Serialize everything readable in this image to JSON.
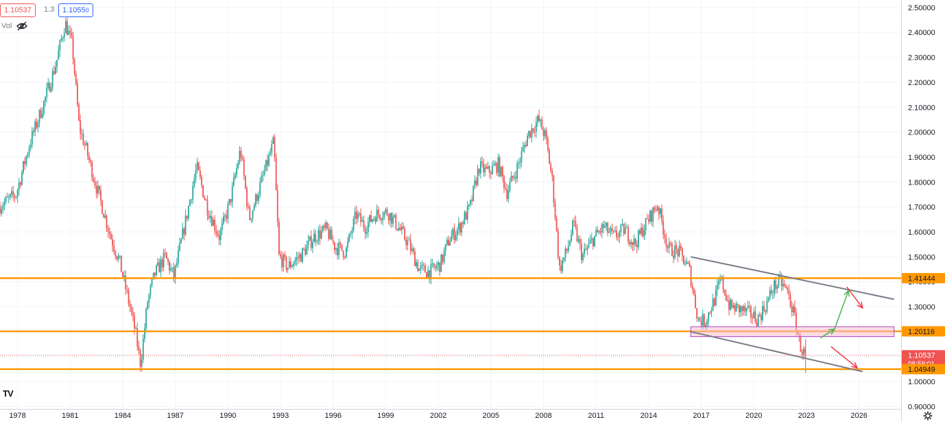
{
  "header": {
    "bid_price": "1.10537",
    "spread": "1.3",
    "ask_price_main": "1.1055",
    "ask_price_small": "0",
    "vol_label": "Vol",
    "vol_icon": "eye-crossed-icon"
  },
  "footer": {
    "logo_text": "TV",
    "settings_icon": "gear-icon"
  },
  "colors": {
    "up": "#26a69a",
    "down": "#ef5350",
    "level": "#ff9800",
    "channel": "#787b86",
    "zone_fill": "#f8bbd0",
    "zone_border": "#ab47bc",
    "arrow_up": "#4caf50",
    "arrow_down": "#f23645",
    "grid": "#f0f3fa"
  },
  "chart_data": {
    "type": "candlestick",
    "y_ticks": [
      "2.50000",
      "2.40000",
      "2.30000",
      "2.20000",
      "2.10000",
      "2.00000",
      "1.90000",
      "1.80000",
      "1.70000",
      "1.60000",
      "1.50000",
      "1.40000",
      "1.30000",
      "1.20000",
      "1.10000",
      "1.00000",
      "0.90000"
    ],
    "x_ticks": [
      "1978",
      "1981",
      "1984",
      "1987",
      "1990",
      "1993",
      "1996",
      "1999",
      "2002",
      "2005",
      "2008",
      "2011",
      "2014",
      "2017",
      "2020",
      "2023",
      "2026"
    ],
    "ylim": [
      0.89,
      2.53
    ],
    "xlim": [
      1977.0,
      2028.4
    ],
    "price_labels": [
      {
        "value": 1.41444,
        "text": "1.41444",
        "kind": "level"
      },
      {
        "value": 1.20116,
        "text": "1.20116",
        "kind": "level"
      },
      {
        "value": 1.10537,
        "text": "1.10537",
        "countdown": "08:58:01",
        "kind": "current"
      },
      {
        "value": 1.04949,
        "text": "1.04949",
        "kind": "level"
      }
    ],
    "horizontal_levels": [
      1.41444,
      1.20116,
      1.04949
    ],
    "channel_upper": [
      [
        2016.4,
        1.5
      ],
      [
        2028.0,
        1.33
      ]
    ],
    "channel_lower": [
      [
        2016.4,
        1.2
      ],
      [
        2026.2,
        1.04
      ]
    ],
    "zone": {
      "x": [
        2016.4,
        2028.0
      ],
      "y": [
        1.18,
        1.22
      ]
    },
    "arrows": [
      {
        "from": [
          2023.8,
          1.175
        ],
        "to": [
          2024.6,
          1.21
        ],
        "dir": "up"
      },
      {
        "from": [
          2024.6,
          1.21
        ],
        "to": [
          2025.4,
          1.365
        ],
        "dir": "up"
      },
      {
        "from": [
          2025.3,
          1.38
        ],
        "to": [
          2026.2,
          1.295
        ],
        "dir": "down"
      },
      {
        "from": [
          2024.4,
          1.14
        ],
        "to": [
          2025.9,
          1.055
        ],
        "dir": "down"
      }
    ],
    "anchors": [
      [
        1977.0,
        1.7
      ],
      [
        1978.0,
        1.75
      ],
      [
        1978.8,
        1.96
      ],
      [
        1979.6,
        2.12
      ],
      [
        1980.3,
        2.28
      ],
      [
        1980.8,
        2.44
      ],
      [
        1981.2,
        2.35
      ],
      [
        1981.6,
        2.02
      ],
      [
        1982.0,
        1.93
      ],
      [
        1982.5,
        1.8
      ],
      [
        1983.0,
        1.68
      ],
      [
        1983.4,
        1.58
      ],
      [
        1983.9,
        1.48
      ],
      [
        1984.3,
        1.36
      ],
      [
        1984.8,
        1.2
      ],
      [
        1985.1,
        1.07
      ],
      [
        1985.5,
        1.32
      ],
      [
        1985.9,
        1.43
      ],
      [
        1986.5,
        1.5
      ],
      [
        1987.0,
        1.42
      ],
      [
        1987.6,
        1.62
      ],
      [
        1988.3,
        1.86
      ],
      [
        1988.9,
        1.7
      ],
      [
        1989.6,
        1.58
      ],
      [
        1990.2,
        1.72
      ],
      [
        1990.8,
        1.93
      ],
      [
        1991.3,
        1.65
      ],
      [
        1991.9,
        1.78
      ],
      [
        1992.7,
        1.96
      ],
      [
        1993.0,
        1.5
      ],
      [
        1993.5,
        1.46
      ],
      [
        1994.3,
        1.51
      ],
      [
        1995.0,
        1.58
      ],
      [
        1995.7,
        1.61
      ],
      [
        1996.2,
        1.54
      ],
      [
        1996.8,
        1.52
      ],
      [
        1997.4,
        1.67
      ],
      [
        1997.9,
        1.62
      ],
      [
        1998.5,
        1.67
      ],
      [
        1999.2,
        1.68
      ],
      [
        1999.8,
        1.62
      ],
      [
        2000.4,
        1.55
      ],
      [
        2001.0,
        1.45
      ],
      [
        2001.6,
        1.44
      ],
      [
        2002.2,
        1.47
      ],
      [
        2002.7,
        1.57
      ],
      [
        2003.3,
        1.62
      ],
      [
        2003.9,
        1.7
      ],
      [
        2004.4,
        1.86
      ],
      [
        2004.9,
        1.84
      ],
      [
        2005.5,
        1.87
      ],
      [
        2006.0,
        1.76
      ],
      [
        2006.6,
        1.86
      ],
      [
        2007.2,
        1.99
      ],
      [
        2007.8,
        2.05
      ],
      [
        2008.2,
        1.98
      ],
      [
        2008.6,
        1.8
      ],
      [
        2009.0,
        1.45
      ],
      [
        2009.4,
        1.52
      ],
      [
        2009.8,
        1.63
      ],
      [
        2010.3,
        1.5
      ],
      [
        2010.9,
        1.57
      ],
      [
        2011.5,
        1.62
      ],
      [
        2012.1,
        1.58
      ],
      [
        2012.7,
        1.61
      ],
      [
        2013.3,
        1.55
      ],
      [
        2013.9,
        1.63
      ],
      [
        2014.6,
        1.71
      ],
      [
        2015.2,
        1.53
      ],
      [
        2015.8,
        1.52
      ],
      [
        2016.4,
        1.45
      ],
      [
        2016.9,
        1.25
      ],
      [
        2017.3,
        1.24
      ],
      [
        2017.9,
        1.34
      ],
      [
        2018.2,
        1.41
      ],
      [
        2018.7,
        1.3
      ],
      [
        2019.3,
        1.29
      ],
      [
        2019.9,
        1.27
      ],
      [
        2020.3,
        1.25
      ],
      [
        2020.8,
        1.31
      ],
      [
        2021.2,
        1.38
      ],
      [
        2021.6,
        1.4
      ],
      [
        2022.0,
        1.36
      ],
      [
        2022.4,
        1.26
      ],
      [
        2022.7,
        1.15
      ],
      [
        2022.95,
        1.105
      ]
    ]
  }
}
